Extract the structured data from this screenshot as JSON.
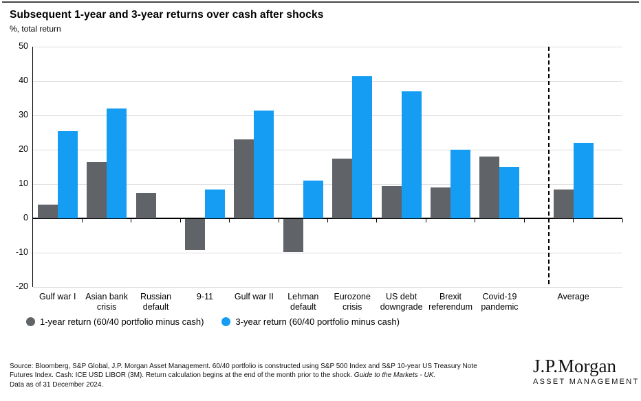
{
  "header": {
    "title": "Subsequent 1-year and 3-year returns over cash after shocks",
    "subtitle": "%, total return"
  },
  "chart_data": {
    "type": "bar",
    "title": "Subsequent 1-year and 3-year returns over cash after shocks",
    "ylabel": "%, total return",
    "ylim": [
      -20,
      50
    ],
    "yticks": [
      50,
      40,
      30,
      20,
      10,
      0,
      -10,
      -20
    ],
    "grid": "horizontal",
    "legend_position": "bottom-left",
    "categories": [
      "Gulf war I",
      "Asian bank crisis",
      "Russian default",
      "9-11",
      "Gulf war II",
      "Lehman default",
      "Eurozone crisis",
      "US debt downgrade",
      "Brexit referendum",
      "Covid-19 pandemic"
    ],
    "series": [
      {
        "name": "1-year return (60/40 portfolio minus cash)",
        "color": "#606367",
        "values": [
          4,
          16.5,
          7.5,
          -9,
          23,
          -9.5,
          17.5,
          9.5,
          9,
          18
        ]
      },
      {
        "name": "3-year return (60/40 portfolio minus cash)",
        "color": "#149df2",
        "values": [
          25.5,
          32,
          0,
          8.5,
          31.5,
          11,
          41.5,
          37,
          20,
          15
        ]
      }
    ],
    "average": {
      "label": "Average",
      "values": [
        8.5,
        22
      ]
    },
    "average_separator": "dashed-vertical-line"
  },
  "footer": {
    "source_line1": "Source: Bloomberg, S&P Global, J.P. Morgan Asset Management. 60/40 portfolio is constructed using S&P 500 Index and S&P 10-year US Treasury Note",
    "source_line2": "Futures Index. Cash: ICE USD LIBOR (3M). Return calculation begins at the end of the month prior to the shock. ",
    "source_line2_italic": "Guide to the Markets - UK.",
    "source_line3": "Data as of 31 December 2024.",
    "logo_title": "J.P.Morgan",
    "logo_subtitle": "ASSET MANAGEMENT"
  }
}
